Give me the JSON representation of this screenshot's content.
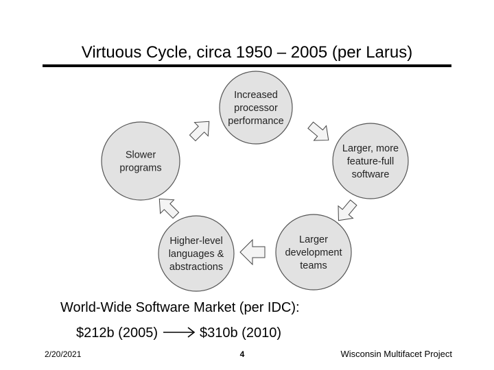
{
  "title": "Virtuous Cycle, circa 1950 – 2005 (per Larus)",
  "nodes": [
    {
      "lines": [
        "Increased",
        "processor",
        "performance"
      ]
    },
    {
      "lines": [
        "Larger, more",
        "feature-full",
        "software"
      ]
    },
    {
      "lines": [
        "Larger",
        "development",
        "teams"
      ]
    },
    {
      "lines": [
        "Higher-level",
        "languages &",
        "abstractions"
      ]
    },
    {
      "lines": [
        "Slower",
        "programs"
      ]
    }
  ],
  "market": {
    "heading": "World-Wide Software Market (per IDC):",
    "from": "$212b (2005)",
    "to": "$310b (2010)"
  },
  "footer": {
    "date": "2/20/2021",
    "page": "4",
    "project": "Wisconsin Multifacet Project"
  }
}
